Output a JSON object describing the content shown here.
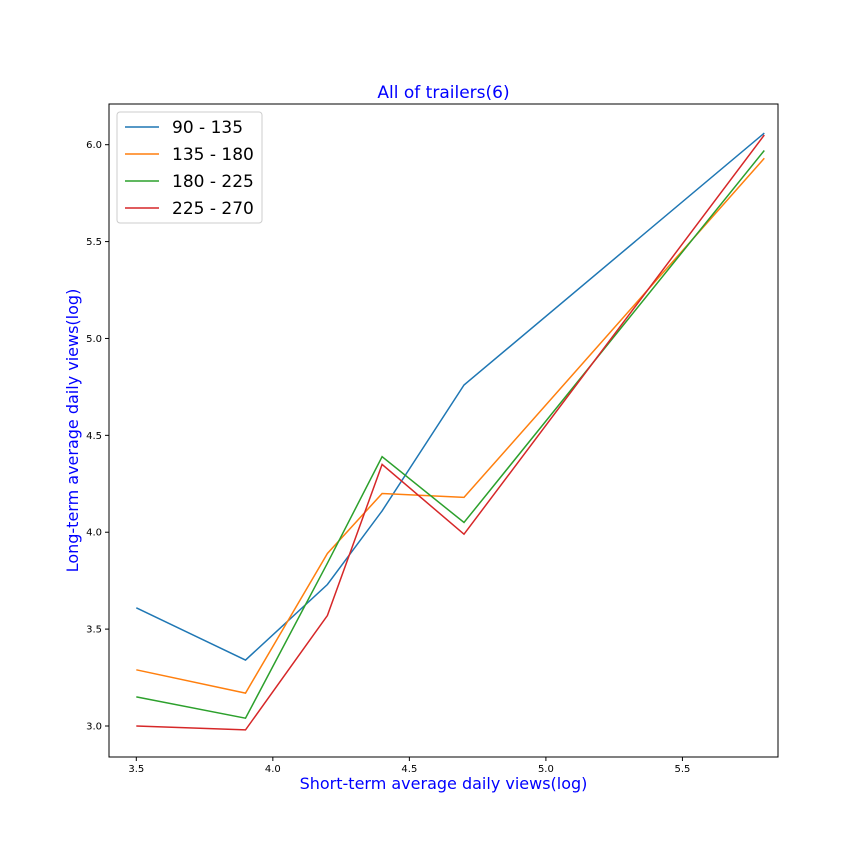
{
  "chart_data": {
    "type": "line",
    "title": "All of trailers(6)",
    "xlabel": "Short-term average daily views(log)",
    "ylabel": "Long-term average daily views(log)",
    "label_color": "#0000ff",
    "xlim": [
      3.4,
      5.85
    ],
    "ylim": [
      2.84,
      6.21
    ],
    "xticks": [
      3.5,
      4.0,
      4.5,
      5.0,
      5.5
    ],
    "yticks": [
      3.0,
      3.5,
      4.0,
      4.5,
      5.0,
      5.5,
      6.0
    ],
    "grid": false,
    "legend_position": "upper-left",
    "x": [
      3.5,
      3.9,
      4.2,
      4.4,
      4.7,
      5.8
    ],
    "series": [
      {
        "name": "90 - 135",
        "color": "#1f77b4",
        "values": [
          3.61,
          3.34,
          3.73,
          4.11,
          4.76,
          6.06
        ]
      },
      {
        "name": "135 - 180",
        "color": "#ff7f0e",
        "values": [
          3.29,
          3.17,
          3.89,
          4.2,
          4.18,
          5.93
        ]
      },
      {
        "name": "180 - 225",
        "color": "#2ca02c",
        "values": [
          3.15,
          3.04,
          3.84,
          4.39,
          4.05,
          5.97
        ]
      },
      {
        "name": "225 - 270",
        "color": "#d62728",
        "values": [
          3.0,
          2.98,
          3.57,
          4.35,
          3.99,
          6.05
        ]
      }
    ]
  }
}
